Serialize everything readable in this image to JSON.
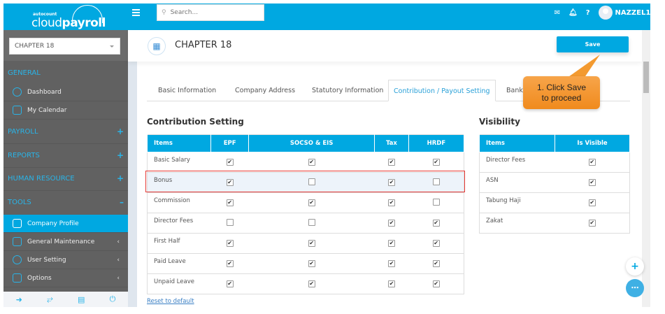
{
  "app": {
    "logo_small": "autocount",
    "logo_main_light": "cloud",
    "logo_main_bold": "payroll"
  },
  "topbar": {
    "search_placeholder": "Search...",
    "user": "NAZZEL1",
    "icons": [
      "mail-icon",
      "bell-icon",
      "help-icon"
    ]
  },
  "sidebar": {
    "company_select": "CHAPTER 18",
    "sections": {
      "general": "GENERAL",
      "payroll": "PAYROLL",
      "reports": "REPORTS",
      "hr": "HUMAN RESOURCE",
      "tools": "TOOLS"
    },
    "items": {
      "dashboard": "Dashboard",
      "calendar": "My Calendar",
      "company_profile": "Company Profile",
      "general_maintenance": "General Maintenance",
      "user_setting": "User Setting",
      "options": "Options"
    }
  },
  "header": {
    "title": "CHAPTER 18",
    "save": "Save"
  },
  "tabs": [
    "Basic Information",
    "Company Address",
    "Statutory Information",
    "Contribution / Payout Setting",
    "Bank Formats"
  ],
  "active_tab": 3,
  "contribution": {
    "title": "Contribution Setting",
    "columns": [
      "Items",
      "EPF",
      "SOCSO & EIS",
      "Tax",
      "HRDF"
    ],
    "rows": [
      {
        "name": "Basic Salary",
        "values": [
          true,
          true,
          true,
          true
        ]
      },
      {
        "name": "Bonus",
        "values": [
          true,
          false,
          true,
          false
        ]
      },
      {
        "name": "Commission",
        "values": [
          true,
          true,
          true,
          false
        ]
      },
      {
        "name": "Director Fees",
        "values": [
          false,
          false,
          true,
          true
        ]
      },
      {
        "name": "First Half",
        "values": [
          true,
          true,
          true,
          true
        ]
      },
      {
        "name": "Paid Leave",
        "values": [
          true,
          true,
          true,
          true
        ]
      },
      {
        "name": "Unpaid Leave",
        "values": [
          true,
          true,
          true,
          true
        ]
      }
    ],
    "reset": "Reset to default"
  },
  "visibility": {
    "title": "Visibility",
    "columns": [
      "Items",
      "Is Visible"
    ],
    "rows": [
      {
        "name": "Director Fees",
        "visible": true
      },
      {
        "name": "ASN",
        "visible": true
      },
      {
        "name": "Tabung Haji",
        "visible": true
      },
      {
        "name": "Zakat",
        "visible": true
      }
    ]
  },
  "callout": {
    "line1": "1.  Click  Save",
    "line2": "to proceed"
  },
  "colors": {
    "primary": "#00a8e1",
    "sidebar": "#616161",
    "highlight": "#e53935",
    "callout": "#f08a1d"
  }
}
